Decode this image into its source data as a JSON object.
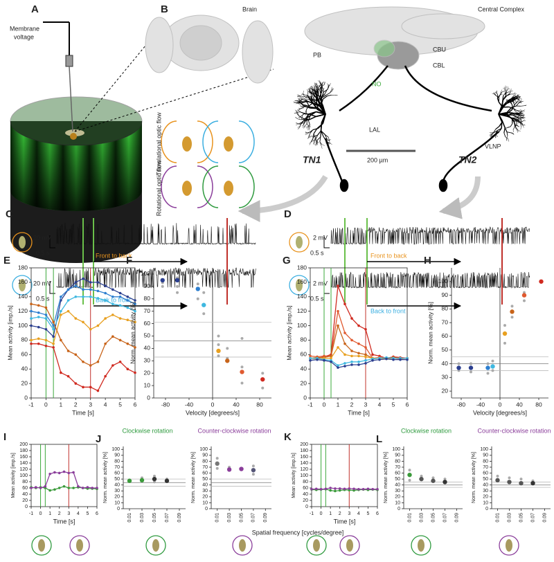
{
  "figure": {
    "panel_labels": [
      "A",
      "B",
      "C",
      "D"
    ],
    "a_label": [
      "Membrane",
      "voltage"
    ],
    "b": {
      "brain": "Brain",
      "central_complex": "Central Complex",
      "pb": "PB",
      "cbu": "CBU",
      "cbl": "CBL",
      "no": "NO",
      "lal": "LAL",
      "vlnp": "VLNP",
      "neurons": [
        "TN1",
        "TN2"
      ],
      "scale_bar": "200 µm",
      "flow": [
        "Translational optic flow",
        "Rotational optic flow"
      ]
    },
    "c": {
      "scale_v": "20 mV",
      "scale_t": "0.5 s",
      "arrows": [
        "Front to back",
        "Back to front"
      ]
    },
    "d": {
      "scale_v": "2 mV",
      "scale_t": "0.5 s",
      "arrows": [
        "Front to back",
        "Back to front"
      ]
    },
    "spatial_frequency_label": "Spatial frequency [cycles/degree]"
  },
  "chart_data": [
    {
      "type": "line",
      "label": "E",
      "xlabel": "Time [s]",
      "ylabel": "Mean activity [imp./s]",
      "xlim": [
        -1,
        6
      ],
      "xticks": [
        -1,
        0,
        1,
        2,
        3,
        4,
        5,
        6
      ],
      "ylim": [
        0,
        180
      ],
      "yticks": [
        0,
        20,
        40,
        60,
        80,
        100,
        120,
        140,
        160,
        180
      ],
      "x": [
        -1,
        -0.5,
        0,
        0.5,
        1,
        1.5,
        2,
        2.5,
        3,
        3.5,
        4,
        4.5,
        5,
        5.5,
        6
      ],
      "stimulus_lines": [
        {
          "value": 0,
          "color": "#3aa83a"
        },
        {
          "value": 0.5,
          "color": "#3aa83a"
        },
        {
          "value": 3,
          "color": "#c0302a"
        }
      ],
      "series": [
        {
          "color": "#2b3f8f",
          "values": [
            100,
            98,
            95,
            85,
            135,
            150,
            160,
            165,
            160,
            160,
            155,
            150,
            145,
            140,
            135
          ]
        },
        {
          "color": "#2d7fd0",
          "values": [
            120,
            118,
            115,
            100,
            140,
            150,
            155,
            150,
            150,
            148,
            145,
            140,
            140,
            135,
            130
          ]
        },
        {
          "color": "#3fb8e0",
          "values": [
            110,
            112,
            110,
            95,
            120,
            135,
            140,
            140,
            140,
            138,
            135,
            130,
            128,
            125,
            120
          ]
        },
        {
          "color": "#e8a020",
          "values": [
            80,
            82,
            80,
            75,
            115,
            120,
            110,
            105,
            95,
            100,
            110,
            115,
            110,
            108,
            105
          ]
        },
        {
          "color": "#c8641a",
          "values": [
            130,
            128,
            125,
            105,
            80,
            65,
            60,
            50,
            45,
            50,
            75,
            85,
            80,
            75,
            70
          ]
        },
        {
          "color": "#d02a20",
          "values": [
            75,
            75,
            72,
            70,
            35,
            30,
            20,
            15,
            15,
            10,
            30,
            45,
            50,
            40,
            35
          ]
        }
      ]
    },
    {
      "type": "scatter",
      "label": "F",
      "xlabel": "Velocity [degrees/s]",
      "ylabel": "Norm. mean activity [%]",
      "xlim": [
        -100,
        100
      ],
      "xticks": [
        -80,
        -40,
        0,
        40,
        80
      ],
      "ylim": [
        0,
        105
      ],
      "yticks": [
        0,
        10,
        20,
        30,
        40,
        50,
        60,
        70,
        80,
        90,
        100
      ],
      "reference_lines": [
        33,
        46,
        61
      ],
      "series": [
        {
          "color": "#aaaaaa",
          "x": [
            -85,
            -85,
            -85,
            -60,
            -60,
            -60,
            -25,
            -25,
            -15,
            -15,
            10,
            10,
            10,
            25,
            25,
            50,
            50,
            50,
            85,
            85
          ],
          "values": [
            100,
            93,
            90,
            97,
            90,
            85,
            92,
            80,
            85,
            68,
            50,
            43,
            34,
            40,
            32,
            48,
            25,
            12,
            20,
            8
          ]
        },
        {
          "colors": [
            "#2b3f8f",
            "#2b3f8f",
            "#2d7fd0",
            "#3fb8e0",
            "#e8a020",
            "#c8641a",
            "#e05a30",
            "#d02a20"
          ],
          "x": [
            -85,
            -60,
            -25,
            -15,
            10,
            25,
            50,
            85
          ],
          "values": [
            95,
            95,
            88,
            75,
            38,
            30,
            21,
            15
          ]
        }
      ]
    },
    {
      "type": "line",
      "label": "G",
      "xlabel": "Time [s]",
      "ylabel": "Mean activity [imp./s]",
      "xlim": [
        -1,
        6
      ],
      "xticks": [
        -1,
        0,
        1,
        2,
        3,
        4,
        5,
        6
      ],
      "ylim": [
        0,
        180
      ],
      "yticks": [
        0,
        20,
        40,
        60,
        80,
        100,
        120,
        140,
        160,
        180
      ],
      "x": [
        -1,
        -0.5,
        0,
        0.5,
        1,
        1.5,
        2,
        2.5,
        3,
        3.5,
        4,
        4.5,
        5,
        5.5,
        6
      ],
      "stimulus_lines": [
        {
          "value": 0,
          "color": "#3aa83a"
        },
        {
          "value": 0.5,
          "color": "#3aa83a"
        },
        {
          "value": 3,
          "color": "#c0302a"
        }
      ],
      "series": [
        {
          "color": "#d02a20",
          "values": [
            55,
            55,
            57,
            60,
            155,
            130,
            110,
            100,
            95,
            60,
            58,
            55,
            57,
            56,
            55
          ]
        },
        {
          "color": "#e05a30",
          "values": [
            58,
            57,
            58,
            58,
            120,
            90,
            80,
            75,
            70,
            55,
            56,
            55,
            55,
            54,
            55
          ]
        },
        {
          "color": "#c8641a",
          "values": [
            55,
            56,
            56,
            58,
            100,
            75,
            65,
            62,
            60,
            55,
            55,
            55,
            56,
            55,
            55
          ]
        },
        {
          "color": "#e8a020",
          "values": [
            55,
            54,
            55,
            55,
            70,
            60,
            58,
            58,
            57,
            55,
            55,
            54,
            55,
            55,
            55
          ]
        },
        {
          "color": "#3fb8e0",
          "values": [
            55,
            55,
            53,
            52,
            45,
            48,
            50,
            50,
            52,
            54,
            55,
            56,
            55,
            55,
            55
          ]
        },
        {
          "color": "#2b3f8f",
          "values": [
            52,
            53,
            52,
            50,
            42,
            44,
            46,
            46,
            48,
            52,
            53,
            54,
            53,
            53,
            53
          ]
        }
      ]
    },
    {
      "type": "scatter",
      "label": "H",
      "xlabel": "Velocity [degrees/s]",
      "ylabel": "Norm. mean activity [%]",
      "xlim": [
        -100,
        100
      ],
      "xticks": [
        -80,
        -40,
        0,
        40,
        80
      ],
      "ylim": [
        15,
        110
      ],
      "yticks": [
        20,
        30,
        40,
        50,
        60,
        70,
        80,
        90,
        100
      ],
      "reference_lines": [
        35,
        40,
        45
      ],
      "series": [
        {
          "color": "#aaaaaa",
          "x": [
            -85,
            -85,
            -60,
            -60,
            -25,
            -25,
            -15,
            -15,
            10,
            10,
            25,
            25,
            50,
            50
          ],
          "values": [
            40,
            35,
            40,
            34,
            40,
            33,
            42,
            35,
            68,
            55,
            82,
            74,
            92,
            86
          ]
        },
        {
          "colors": [
            "#2b3f8f",
            "#2b3f8f",
            "#2d7fd0",
            "#3fb8e0",
            "#e8a020",
            "#c8641a",
            "#e05a30",
            "#d02a20"
          ],
          "x": [
            -85,
            -60,
            -25,
            -15,
            10,
            25,
            50,
            85
          ],
          "values": [
            37,
            37,
            37,
            38,
            62,
            78,
            90,
            100
          ]
        }
      ]
    },
    {
      "type": "line",
      "label": "I",
      "xlabel": "Time [s]",
      "ylabel": "Mean activity [imp./s]",
      "xlim": [
        -1,
        6
      ],
      "xticks": [
        -1,
        0,
        1,
        2,
        3,
        4,
        5,
        6
      ],
      "ylim": [
        0,
        200
      ],
      "yticks": [
        0,
        20,
        40,
        60,
        80,
        100,
        120,
        140,
        160,
        180,
        200
      ],
      "x": [
        -1,
        -0.5,
        0,
        0.5,
        1,
        1.5,
        2,
        2.5,
        3,
        3.5,
        4,
        4.5,
        5,
        5.5,
        6
      ],
      "stimulus_lines": [
        {
          "value": 0,
          "color": "#3aa83a"
        },
        {
          "value": 0.5,
          "color": "#3aa83a"
        },
        {
          "value": 3,
          "color": "#c0302a"
        }
      ],
      "series": [
        {
          "color": "#3a9a3a",
          "values": [
            62,
            60,
            62,
            60,
            52,
            55,
            60,
            65,
            60,
            60,
            62,
            60,
            58,
            58,
            57
          ]
        },
        {
          "color": "#8a3d9a",
          "values": [
            60,
            62,
            60,
            65,
            105,
            110,
            108,
            112,
            108,
            110,
            65,
            60,
            62,
            60,
            60
          ]
        }
      ]
    },
    {
      "type": "scatter",
      "label": "J",
      "title": "Clockwise rotation",
      "title_color": "#2e9a3e",
      "ylabel": "Norm. mean activity [%]",
      "xlim": [
        0,
        0.1
      ],
      "xticks": [
        0.01,
        0.03,
        0.05,
        0.07,
        0.09
      ],
      "xtick_rotation": 90,
      "ylim": [
        0,
        105
      ],
      "yticks": [
        0,
        10,
        20,
        30,
        40,
        50,
        60,
        70,
        80,
        90,
        100
      ],
      "reference_lines": [
        38,
        44,
        50
      ],
      "series": [
        {
          "color": "#aaaaaa",
          "x": [
            0.03,
            0.05,
            0.05,
            0.07
          ],
          "values": [
            52,
            55,
            45,
            50
          ]
        },
        {
          "colors": [
            "#3a9a3a",
            "#3a9a3a",
            "#333333",
            "#333333"
          ],
          "x": [
            0.01,
            0.03,
            0.05,
            0.07
          ],
          "values": [
            47,
            48,
            50,
            47
          ]
        }
      ]
    },
    {
      "type": "scatter",
      "title": "Counter-clockwise rotation",
      "title_color": "#8a3d9a",
      "ylabel": "Norm. mean activity [%]",
      "xlim": [
        0,
        0.1
      ],
      "xticks": [
        0.01,
        0.03,
        0.05,
        0.07,
        0.09
      ],
      "xtick_rotation": 90,
      "ylim": [
        0,
        105
      ],
      "yticks": [
        0,
        10,
        20,
        30,
        40,
        50,
        60,
        70,
        80,
        90,
        100
      ],
      "reference_lines": [
        38,
        44,
        50
      ],
      "series": [
        {
          "color": "#aaaaaa",
          "x": [
            0.01,
            0.01,
            0.03,
            0.05,
            0.07,
            0.07
          ],
          "values": [
            85,
            68,
            70,
            68,
            72,
            58
          ]
        },
        {
          "colors": [
            "#777777",
            "#8a3d9a",
            "#8a3d9a",
            "#555577"
          ],
          "x": [
            0.01,
            0.03,
            0.05,
            0.07
          ],
          "values": [
            76,
            66,
            67,
            65
          ]
        }
      ]
    },
    {
      "type": "line",
      "label": "K",
      "xlabel": "Time [s]",
      "ylabel": "Mean activity [imp./s]",
      "xlim": [
        -1,
        6
      ],
      "xticks": [
        -1,
        0,
        1,
        2,
        3,
        4,
        5,
        6
      ],
      "ylim": [
        0,
        200
      ],
      "yticks": [
        0,
        20,
        40,
        60,
        80,
        100,
        120,
        140,
        160,
        180,
        200
      ],
      "x": [
        -1,
        -0.5,
        0,
        0.5,
        1,
        1.5,
        2,
        2.5,
        3,
        3.5,
        4,
        4.5,
        5,
        5.5,
        6
      ],
      "stimulus_lines": [
        {
          "value": 0,
          "color": "#3aa83a"
        },
        {
          "value": 0.5,
          "color": "#3aa83a"
        },
        {
          "value": 3,
          "color": "#c0302a"
        }
      ],
      "series": [
        {
          "color": "#3a9a3a",
          "values": [
            55,
            54,
            55,
            56,
            52,
            50,
            52,
            54,
            53,
            52,
            54,
            55,
            54,
            55,
            54
          ]
        },
        {
          "color": "#8a3d9a",
          "values": [
            56,
            57,
            56,
            57,
            60,
            58,
            58,
            57,
            58,
            57,
            56,
            56,
            57,
            56,
            56
          ]
        }
      ]
    },
    {
      "type": "scatter",
      "label": "L",
      "title": "Clockwise rotation",
      "title_color": "#2e9a3e",
      "ylabel": "Norm. mean activity [%]",
      "xlim": [
        0,
        0.1
      ],
      "xticks": [
        0.01,
        0.03,
        0.05,
        0.07,
        0.09
      ],
      "xtick_rotation": 90,
      "ylim": [
        0,
        105
      ],
      "yticks": [
        0,
        10,
        20,
        30,
        40,
        50,
        60,
        70,
        80,
        90,
        100
      ],
      "reference_lines": [
        36,
        40,
        45
      ],
      "series": [
        {
          "color": "#aaaaaa",
          "x": [
            0.01,
            0.01,
            0.03,
            0.05,
            0.07
          ],
          "values": [
            65,
            48,
            55,
            52,
            50
          ]
        },
        {
          "colors": [
            "#3a9a3a",
            "#555555",
            "#555555",
            "#333333"
          ],
          "x": [
            0.01,
            0.03,
            0.05,
            0.07
          ],
          "values": [
            57,
            50,
            47,
            45
          ]
        }
      ]
    },
    {
      "type": "scatter",
      "title": "Counter-clockwise rotation",
      "title_color": "#8a3d9a",
      "ylabel": "Norm. mean activity [%]",
      "xlim": [
        0,
        0.1
      ],
      "xticks": [
        0.01,
        0.03,
        0.05,
        0.07,
        0.09
      ],
      "xtick_rotation": 90,
      "ylim": [
        0,
        105
      ],
      "yticks": [
        0,
        10,
        20,
        30,
        40,
        50,
        60,
        70,
        80,
        90,
        100
      ],
      "reference_lines": [
        36,
        40,
        45
      ],
      "series": [
        {
          "color": "#aaaaaa",
          "x": [
            0.01,
            0.03,
            0.03,
            0.05,
            0.07
          ],
          "values": [
            55,
            52,
            45,
            50,
            47
          ]
        },
        {
          "colors": [
            "#555555",
            "#555555",
            "#555555",
            "#333333"
          ],
          "x": [
            0.01,
            0.03,
            0.05,
            0.07
          ],
          "values": [
            48,
            45,
            43,
            43
          ]
        }
      ]
    }
  ]
}
